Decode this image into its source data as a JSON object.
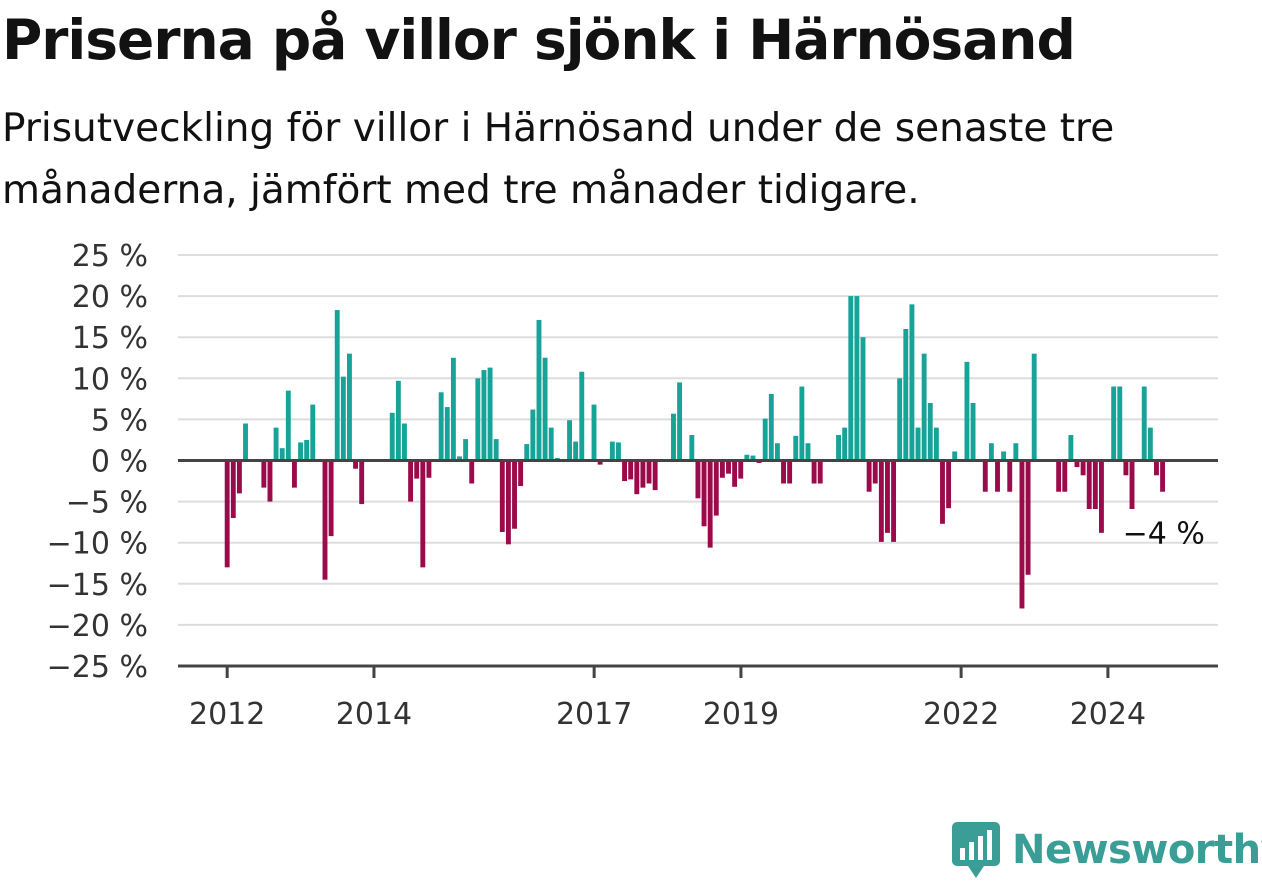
{
  "title": "Priserna på villor sjönk i Härnösand",
  "subtitle": "Prisutveckling för villor i Härnösand under de senaste tre månaderna, jämfört med tre månader tidigare.",
  "brand": {
    "name": "Newsworthy",
    "color": "#3a9e96",
    "icon": "bar-chart-bubble-icon"
  },
  "colors": {
    "positive": "#17a398",
    "negative": "#9b0a4a",
    "zero_line": "#444444",
    "grid": "#dddddd"
  },
  "chart_data": {
    "type": "bar",
    "title": "Priserna på villor sjönk i Härnösand",
    "subtitle": "Prisutveckling för villor i Härnösand under de senaste tre månaderna, jämfört med tre månader tidigare.",
    "xlabel": "",
    "ylabel": "",
    "ylim": [
      -25,
      25
    ],
    "yticks": [
      25,
      20,
      15,
      10,
      5,
      0,
      -5,
      -10,
      -15,
      -20,
      -25
    ],
    "ytick_labels": [
      "25 %",
      "20 %",
      "15 %",
      "10 %",
      "5 %",
      "0 %",
      "−5 %",
      "−10 %",
      "−15 %",
      "−20 %",
      "−25 %"
    ],
    "xticks": [
      2012,
      2014,
      2017,
      2019,
      2022,
      2024
    ],
    "xtick_labels": [
      "2012",
      "2014",
      "2017",
      "2019",
      "2022",
      "2024"
    ],
    "x_start": 2012.0,
    "step": 0.0833,
    "grid": true,
    "annotation": {
      "label": "−4 %",
      "value": -4
    },
    "values": [
      -13,
      -7,
      -4,
      4.5,
      0,
      0,
      -3.3,
      -5,
      4,
      1.5,
      8.5,
      -3.3,
      2.2,
      2.5,
      6.8,
      0,
      -14.5,
      -9.2,
      18.3,
      10.2,
      13,
      -1,
      -5.3,
      0,
      0,
      0,
      0,
      5.8,
      9.7,
      4.5,
      -5,
      -2.2,
      -13,
      -2.1,
      0,
      8.3,
      6.5,
      12.5,
      0.5,
      2.6,
      -2.8,
      10,
      11,
      11.3,
      2.6,
      -8.7,
      -10.2,
      -8.3,
      -3.1,
      2,
      6.2,
      17.1,
      12.5,
      4,
      0.3,
      0,
      4.9,
      2.3,
      10.8,
      0,
      6.8,
      -0.5,
      0,
      2.3,
      2.2,
      -2.5,
      -2.3,
      -4.1,
      -3.3,
      -2.8,
      -3.6,
      0,
      0,
      5.7,
      9.5,
      0,
      3.1,
      -4.6,
      -8,
      -10.6,
      -6.7,
      -2.1,
      -1.6,
      -3.2,
      -2.2,
      0.7,
      0.6,
      -0.3,
      5.1,
      8.1,
      2.1,
      -2.8,
      -2.8,
      3,
      9,
      2.1,
      -2.8,
      -2.8,
      0,
      0,
      3.1,
      4,
      20,
      20,
      15,
      -3.8,
      -2.8,
      -9.9,
      -8.8,
      -9.9,
      10,
      16,
      19,
      4,
      13,
      7,
      4,
      -7.7,
      -5.8,
      1.1,
      0,
      12,
      7,
      0,
      -3.8,
      2.1,
      -3.8,
      1.1,
      -3.8,
      2.1,
      -18,
      -13.9,
      13,
      0,
      0,
      0,
      -3.8,
      -3.8,
      3.1,
      -0.8,
      -1.8,
      -5.9,
      -5.9,
      -8.8,
      0,
      9,
      9,
      -1.8,
      -5.9,
      0,
      9,
      4,
      -1.8,
      -3.8
    ]
  }
}
